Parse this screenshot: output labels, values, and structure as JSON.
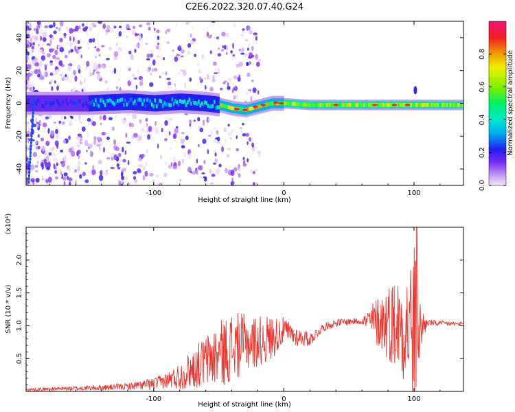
{
  "figure": {
    "title": "C2E6.2022.320.07.40.G24"
  },
  "chart_data": [
    {
      "type": "heatmap",
      "title": "",
      "xlabel": "Height of straight line (km)",
      "ylabel": "Frequency (Hz)",
      "xlim": [
        -198,
        138
      ],
      "ylim": [
        -50,
        50
      ],
      "x_ticks": [
        -100,
        0,
        100
      ],
      "x_tick_labels": [
        "-100",
        "0",
        "100"
      ],
      "y_ticks": [
        -40,
        -20,
        0,
        20,
        40
      ],
      "y_tick_labels": [
        "-40",
        "-20",
        "0",
        "20",
        "40"
      ],
      "grid": false,
      "colorbar": {
        "label": "Normalized spectral amplitude",
        "range": [
          0,
          1
        ],
        "ticks": [
          0.0,
          0.2,
          0.4,
          0.6,
          0.8
        ],
        "tick_labels": [
          "0.0",
          "0.2",
          "0.4",
          "0.6",
          "0.8"
        ]
      },
      "band_center_hz": [
        [
          -198,
          0
        ],
        [
          -150,
          0
        ],
        [
          -120,
          1
        ],
        [
          -100,
          0
        ],
        [
          -80,
          1
        ],
        [
          -60,
          0
        ],
        [
          -50,
          -1
        ],
        [
          -40,
          -3
        ],
        [
          -30,
          -4
        ],
        [
          -20,
          -2
        ],
        [
          -10,
          0
        ],
        [
          0,
          0
        ],
        [
          20,
          -1
        ],
        [
          50,
          -1
        ],
        [
          80,
          -1
        ],
        [
          100,
          -1
        ],
        [
          120,
          -1
        ],
        [
          138,
          -1
        ]
      ]
    },
    {
      "type": "line",
      "title": "",
      "xlabel": "Height of straight line (km)",
      "ylabel": "SNR (10 * v/v)",
      "y_multiplier": "(x10⁴)",
      "xlim": [
        -198,
        138
      ],
      "ylim": [
        0,
        2.5
      ],
      "x_ticks": [
        -100,
        0,
        100
      ],
      "x_tick_labels": [
        "-100",
        "0",
        "100"
      ],
      "y_ticks": [
        0.5,
        1.0,
        1.5,
        2.0
      ],
      "y_tick_labels": [
        "0.5",
        "1.0",
        "1.5",
        "2.0"
      ],
      "grid": false,
      "line_color": "#e8362f",
      "envelope": [
        [
          -198,
          0.03
        ],
        [
          -180,
          0.04
        ],
        [
          -160,
          0.05
        ],
        [
          -140,
          0.06
        ],
        [
          -120,
          0.08
        ],
        [
          -100,
          0.12
        ],
        [
          -90,
          0.18
        ],
        [
          -80,
          0.25
        ],
        [
          -70,
          0.38
        ],
        [
          -60,
          0.5
        ],
        [
          -50,
          0.62
        ],
        [
          -40,
          0.72
        ],
        [
          -30,
          0.78
        ],
        [
          -20,
          0.8
        ],
        [
          -10,
          0.85
        ],
        [
          0,
          0.95
        ],
        [
          10,
          0.85
        ],
        [
          20,
          0.8
        ],
        [
          30,
          0.98
        ],
        [
          40,
          1.05
        ],
        [
          50,
          1.07
        ],
        [
          60,
          1.08
        ],
        [
          70,
          1.1
        ],
        [
          80,
          1.12
        ],
        [
          90,
          1.1
        ],
        [
          95,
          1.1
        ],
        [
          100,
          1.05
        ],
        [
          105,
          1.0
        ],
        [
          110,
          1.05
        ],
        [
          120,
          1.04
        ],
        [
          138,
          1.03
        ]
      ],
      "spread": [
        [
          -198,
          0.02
        ],
        [
          -120,
          0.05
        ],
        [
          -90,
          0.12
        ],
        [
          -70,
          0.3
        ],
        [
          -50,
          0.5
        ],
        [
          -40,
          0.55
        ],
        [
          -30,
          0.45
        ],
        [
          -10,
          0.35
        ],
        [
          0,
          0.2
        ],
        [
          10,
          0.15
        ],
        [
          30,
          0.06
        ],
        [
          60,
          0.05
        ],
        [
          70,
          0.35
        ],
        [
          85,
          0.7
        ],
        [
          95,
          0.9
        ],
        [
          100,
          1.4
        ],
        [
          105,
          0.4
        ],
        [
          110,
          0.05
        ],
        [
          138,
          0.03
        ]
      ],
      "peak": [
        102,
        2.5
      ]
    }
  ]
}
